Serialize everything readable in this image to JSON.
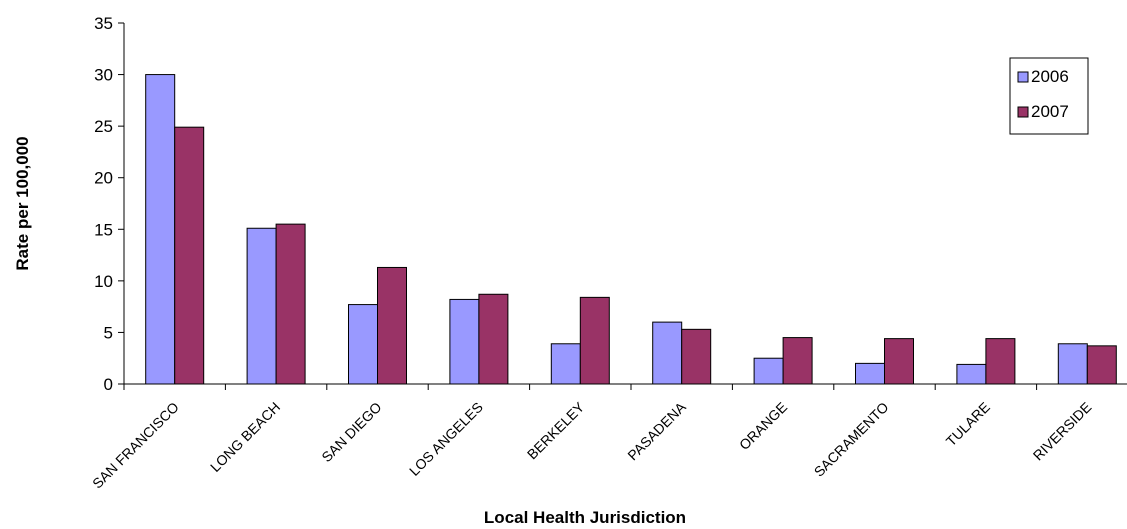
{
  "chart_data": {
    "type": "bar",
    "title": "",
    "xlabel": "Local Health Jurisdiction",
    "ylabel": "Rate per 100,000",
    "ylim": [
      0,
      35
    ],
    "yticks": [
      0,
      5,
      10,
      15,
      20,
      25,
      30,
      35
    ],
    "grid": false,
    "legend_position": "top-right",
    "categories": [
      "SAN FRANCISCO",
      "LONG BEACH",
      "SAN DIEGO",
      "LOS ANGELES",
      "BERKELEY",
      "PASADENA",
      "ORANGE",
      "SACRAMENTO",
      "TULARE",
      "RIVERSIDE"
    ],
    "series": [
      {
        "name": "2006",
        "color": "#9999ff",
        "values": [
          30.0,
          15.1,
          7.7,
          8.2,
          3.9,
          6.0,
          2.5,
          2.0,
          1.9,
          3.9
        ]
      },
      {
        "name": "2007",
        "color": "#993366",
        "values": [
          24.9,
          15.5,
          11.3,
          8.7,
          8.4,
          5.3,
          4.5,
          4.4,
          4.4,
          3.7
        ]
      }
    ]
  }
}
